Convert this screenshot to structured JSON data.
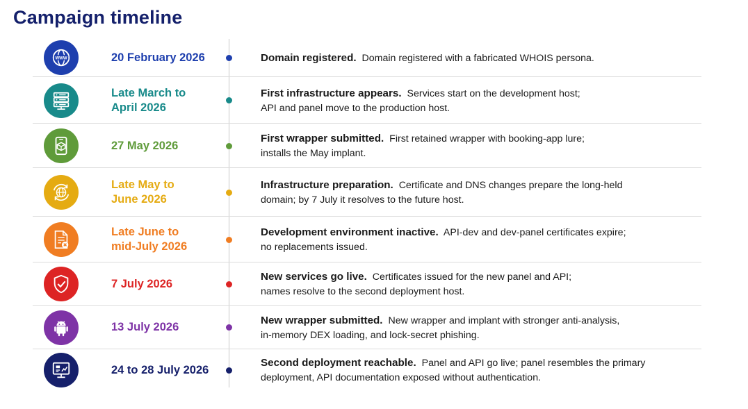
{
  "title": "Campaign timeline",
  "events": [
    {
      "date": "20 February 2026",
      "date_lines": [
        "20 February 2026"
      ],
      "heading": "Domain registered.",
      "text_lines": [
        "Domain registered with a fabricated WHOIS persona."
      ],
      "color": "#1e3fae",
      "icon": "globe-www-icon"
    },
    {
      "date": "Late March to April 2026",
      "date_lines": [
        "Late March to",
        "April 2026"
      ],
      "heading": "First infrastructure appears.",
      "text_lines": [
        "Services start on the development host;",
        "API and panel move to the production host."
      ],
      "color": "#188a8a",
      "icon": "server-rack-icon"
    },
    {
      "date": "27 May 2026",
      "date_lines": [
        "27 May 2026"
      ],
      "heading": "First wrapper submitted.",
      "text_lines": [
        "First retained wrapper with booking-app lure;",
        "installs the May implant."
      ],
      "color": "#5f9b3a",
      "icon": "phone-package-icon"
    },
    {
      "date": "Late May to June 2026",
      "date_lines": [
        "Late May to",
        "June 2026"
      ],
      "heading": "Infrastructure preparation.",
      "text_lines": [
        "Certificate and DNS changes prepare the long-held",
        "domain; by 7 July it resolves to the future host."
      ],
      "color": "#e5ab12",
      "icon": "globe-sync-icon"
    },
    {
      "date": "Late June to mid-July 2026",
      "date_lines": [
        "Late June to",
        "mid-July 2026"
      ],
      "heading": "Development environment inactive.",
      "text_lines": [
        "API-dev and dev-panel certificates expire;",
        "no replacements issued."
      ],
      "color": "#f07d22",
      "icon": "document-expired-icon"
    },
    {
      "date": "7 July 2026",
      "date_lines": [
        "7 July 2026"
      ],
      "heading": "New services go live.",
      "text_lines": [
        "Certificates issued for the new panel and API;",
        "names resolve to the second deployment host."
      ],
      "color": "#dd2424",
      "icon": "shield-check-icon"
    },
    {
      "date": "13 July 2026",
      "date_lines": [
        "13 July 2026"
      ],
      "heading": "New wrapper submitted.",
      "text_lines": [
        "New wrapper and implant with stronger anti-analysis,",
        "in-memory DEX loading, and lock-secret phishing."
      ],
      "color": "#7e33a6",
      "icon": "android-icon"
    },
    {
      "date": "24 to 28 July 2026",
      "date_lines": [
        "24 to 28 July 2026"
      ],
      "heading": "Second deployment reachable.",
      "text_lines": [
        "Panel and API go live; panel resembles the primary",
        "deployment, API documentation exposed without authentication."
      ],
      "color": "#16206b",
      "icon": "monitor-dashboard-icon"
    }
  ]
}
